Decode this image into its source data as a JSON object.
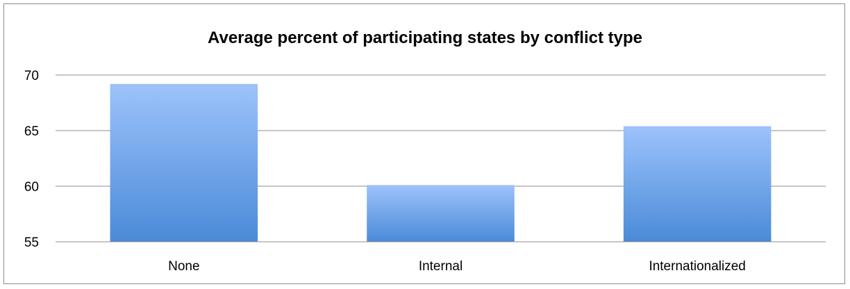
{
  "chart_data": {
    "type": "bar",
    "title": "Average percent of participating states by conflict type",
    "xlabel": "",
    "ylabel": "",
    "categories": [
      "None",
      "Internal",
      "Internationalized"
    ],
    "values": [
      69.2,
      60.1,
      65.4
    ],
    "ylim": [
      55,
      70
    ],
    "yticks": [
      55,
      60,
      65,
      70
    ],
    "grid": true,
    "legend": "none",
    "colors": {
      "bar_top": "#9dc3fb",
      "bar_bottom": "#4a8ad8",
      "grid": "#8c8c8c",
      "axis": "#8c8c8c"
    }
  }
}
